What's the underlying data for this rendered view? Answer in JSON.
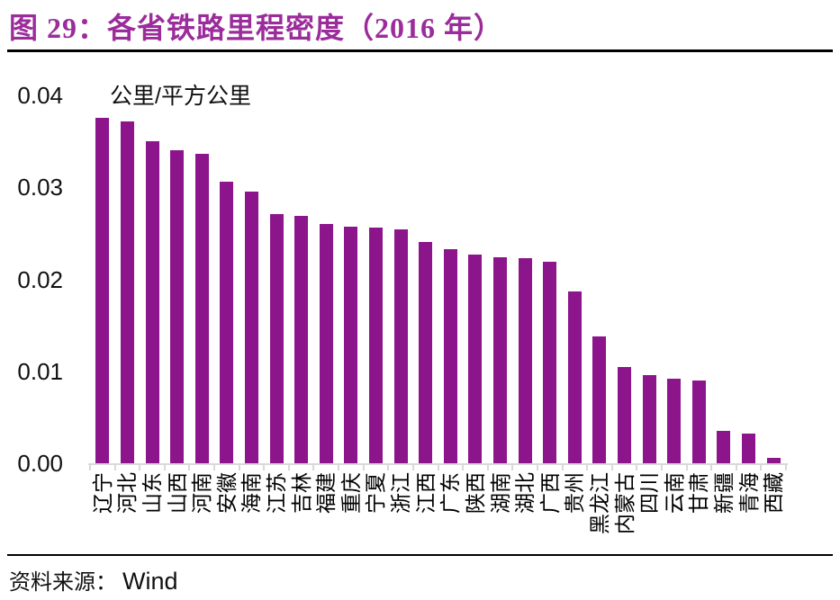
{
  "figure": {
    "title": "图 29：各省铁路里程密度（2016 年）",
    "title_color": "#9B2C9B"
  },
  "chart_data": {
    "type": "bar",
    "title": "图 29：各省铁路里程密度（2016 年）",
    "unit_label": "公里/平方公里",
    "categories": [
      "辽宁",
      "河北",
      "山东",
      "山西",
      "河南",
      "安徽",
      "海南",
      "江苏",
      "吉林",
      "福建",
      "重庆",
      "宁夏",
      "浙江",
      "江西",
      "广东",
      "陕西",
      "湖南",
      "湖北",
      "广西",
      "贵州",
      "黑龙江",
      "内蒙古",
      "四川",
      "云南",
      "甘肃",
      "新疆",
      "青海",
      "西藏"
    ],
    "values": [
      0.0376,
      0.0372,
      0.035,
      0.034,
      0.0336,
      0.0306,
      0.0295,
      0.0271,
      0.0269,
      0.026,
      0.0257,
      0.0256,
      0.0254,
      0.0241,
      0.0233,
      0.0227,
      0.0224,
      0.0223,
      0.0219,
      0.0187,
      0.0138,
      0.0105,
      0.0096,
      0.0092,
      0.009,
      0.0035,
      0.0032,
      0.0006
    ],
    "y_ticks": [
      "0.04",
      "0.03",
      "0.02",
      "0.01",
      "0.00"
    ],
    "ylim": [
      0,
      0.04
    ],
    "xlabel": "",
    "ylabel": "公里/平方公里",
    "grid": false,
    "legend": "none",
    "bar_color": "#8C158C",
    "axis_color": "#D9D9D9"
  },
  "source": {
    "prefix": "资料来源：",
    "name": "Wind"
  }
}
